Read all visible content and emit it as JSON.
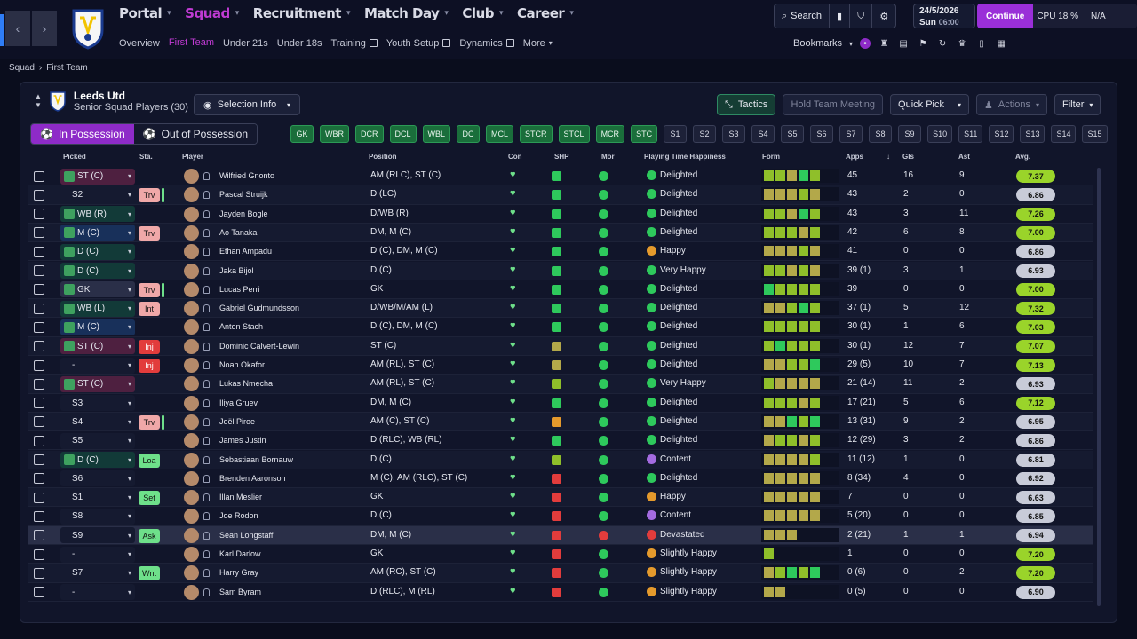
{
  "nav": {
    "main": [
      {
        "label": "Portal",
        "active": false
      },
      {
        "label": "Squad",
        "active": true
      },
      {
        "label": "Recruitment",
        "active": false
      },
      {
        "label": "Match Day",
        "active": false
      },
      {
        "label": "Club",
        "active": false
      },
      {
        "label": "Career",
        "active": false
      }
    ],
    "sub": [
      {
        "label": "Overview",
        "active": false,
        "ext": false
      },
      {
        "label": "First Team",
        "active": true,
        "ext": false
      },
      {
        "label": "Under 21s",
        "active": false,
        "ext": false
      },
      {
        "label": "Under 18s",
        "active": false,
        "ext": false
      },
      {
        "label": "Training",
        "active": false,
        "ext": true
      },
      {
        "label": "Youth Setup",
        "active": false,
        "ext": true
      },
      {
        "label": "Dynamics",
        "active": false,
        "ext": true
      },
      {
        "label": "More",
        "active": false,
        "ext": false
      }
    ]
  },
  "top": {
    "search": "Search",
    "date": "24/5/2026",
    "day": "Sun",
    "time": "06:00",
    "continue": "Continue",
    "cpu_label": "CPU",
    "cpu": "18 %",
    "gpu": "N/A",
    "bookmarks": "Bookmarks",
    "na": "N/A"
  },
  "breadcrumb": {
    "a": "Squad",
    "b": "First Team"
  },
  "team": {
    "name": "Leeds Utd",
    "sub": "Senior Squad Players (30)"
  },
  "toolbar": {
    "selection": "Selection Info",
    "tactics": "Tactics",
    "meeting": "Hold Team Meeting",
    "quick": "Quick Pick",
    "actions": "Actions",
    "filter": "Filter"
  },
  "possession": {
    "in": "In Possession",
    "out": "Out of Possession"
  },
  "positions": [
    {
      "l": "GK",
      "g": true
    },
    {
      "l": "WBR",
      "g": true
    },
    {
      "l": "DCR",
      "g": true
    },
    {
      "l": "DCL",
      "g": true
    },
    {
      "l": "WBL",
      "g": true
    },
    {
      "l": "DC",
      "g": true
    },
    {
      "l": "MCL",
      "g": true
    },
    {
      "l": "STCR",
      "g": true
    },
    {
      "l": "STCL",
      "g": true
    },
    {
      "l": "MCR",
      "g": true
    },
    {
      "l": "STC",
      "g": true
    },
    {
      "l": "S1",
      "g": false
    },
    {
      "l": "S2",
      "g": false
    },
    {
      "l": "S3",
      "g": false
    },
    {
      "l": "S4",
      "g": false
    },
    {
      "l": "S5",
      "g": false
    },
    {
      "l": "S6",
      "g": false
    },
    {
      "l": "S7",
      "g": false
    },
    {
      "l": "S8",
      "g": false
    },
    {
      "l": "S9",
      "g": false
    },
    {
      "l": "S10",
      "g": false
    },
    {
      "l": "S11",
      "g": false
    },
    {
      "l": "S12",
      "g": false
    },
    {
      "l": "S13",
      "g": false
    },
    {
      "l": "S14",
      "g": false
    },
    {
      "l": "S15",
      "g": false
    }
  ],
  "headers": {
    "picked": "Picked",
    "sta": "Sta.",
    "player": "Player",
    "position": "Position",
    "con": "Con",
    "shp": "SHP",
    "mor": "Mor",
    "happy": "Playing Time Happiness",
    "form": "Form",
    "apps": "Apps",
    "gls": "Gls",
    "ast": "Ast",
    "avg": "Avg."
  },
  "colors": {
    "green": "#2ec95c",
    "lime": "#8fbf2a",
    "olive": "#b3a84a",
    "orange": "#e59a2c",
    "red": "#e23c3c",
    "purple": "#a46be0"
  },
  "players": [
    {
      "pick": "ST (C)",
      "pk": "m",
      "sta": "",
      "name": "Wilfried Gnonto",
      "pos": "AM (RLC), ST (C)",
      "shp": "g",
      "mor": "g",
      "happy": "Delighted",
      "hc": "g",
      "form": [
        "l",
        "l",
        "o",
        "g",
        "l"
      ],
      "apps": "45",
      "gls": "16",
      "ast": "9",
      "avg": "7.37",
      "ac": "#9ad42a"
    },
    {
      "pick": "S2",
      "pk": "n",
      "sta": "Trv",
      "st": "trv",
      "tail": true,
      "name": "Pascal Struijk",
      "pos": "D (LC)",
      "shp": "g",
      "mor": "g",
      "happy": "Delighted",
      "hc": "g",
      "form": [
        "o",
        "o",
        "o",
        "l",
        "o"
      ],
      "apps": "43",
      "gls": "2",
      "ast": "0",
      "avg": "6.86",
      "ac": "#c8cbd8"
    },
    {
      "pick": "WB (R)",
      "pk": "g",
      "sta": "",
      "name": "Jayden Bogle",
      "pos": "D/WB (R)",
      "shp": "g",
      "mor": "g",
      "happy": "Delighted",
      "hc": "g",
      "form": [
        "l",
        "l",
        "o",
        "g",
        "l"
      ],
      "apps": "43",
      "gls": "3",
      "ast": "11",
      "avg": "7.26",
      "ac": "#9ad42a"
    },
    {
      "pick": "M (C)",
      "pk": "b",
      "sta": "Trv",
      "st": "trv",
      "name": "Ao Tanaka",
      "pos": "DM, M (C)",
      "shp": "g",
      "mor": "g",
      "happy": "Delighted",
      "hc": "g",
      "form": [
        "l",
        "l",
        "l",
        "o",
        "l"
      ],
      "apps": "42",
      "gls": "6",
      "ast": "8",
      "avg": "7.00",
      "ac": "#9ad42a"
    },
    {
      "pick": "D (C)",
      "pk": "g",
      "sta": "",
      "name": "Ethan Ampadu",
      "pos": "D (C), DM, M (C)",
      "shp": "g",
      "mor": "g",
      "happy": "Happy",
      "hc": "y",
      "form": [
        "o",
        "o",
        "o",
        "l",
        "o"
      ],
      "apps": "41",
      "gls": "0",
      "ast": "0",
      "avg": "6.86",
      "ac": "#c8cbd8"
    },
    {
      "pick": "D (C)",
      "pk": "g",
      "sta": "",
      "name": "Jaka Bijol",
      "pos": "D (C)",
      "shp": "g",
      "mor": "g",
      "happy": "Very Happy",
      "hc": "g",
      "form": [
        "l",
        "l",
        "o",
        "l",
        "o"
      ],
      "apps": "39 (1)",
      "gls": "3",
      "ast": "1",
      "avg": "6.93",
      "ac": "#c8cbd8"
    },
    {
      "pick": "GK",
      "pk": "gk",
      "sta": "Trv",
      "st": "trv",
      "tail": true,
      "name": "Lucas Perri",
      "pos": "GK",
      "shp": "g",
      "mor": "g",
      "happy": "Delighted",
      "hc": "g",
      "form": [
        "g",
        "l",
        "l",
        "l",
        "l"
      ],
      "apps": "39",
      "gls": "0",
      "ast": "0",
      "avg": "7.00",
      "ac": "#9ad42a"
    },
    {
      "pick": "WB (L)",
      "pk": "g",
      "sta": "Int",
      "st": "int",
      "name": "Gabriel Gudmundsson",
      "pos": "D/WB/M/AM (L)",
      "shp": "g",
      "mor": "g",
      "happy": "Delighted",
      "hc": "g",
      "form": [
        "o",
        "o",
        "l",
        "g",
        "l"
      ],
      "apps": "37 (1)",
      "gls": "5",
      "ast": "12",
      "avg": "7.32",
      "ac": "#9ad42a"
    },
    {
      "pick": "M (C)",
      "pk": "b",
      "sta": "",
      "name": "Anton Stach",
      "pos": "D (C), DM, M (C)",
      "shp": "g",
      "mor": "g",
      "happy": "Delighted",
      "hc": "g",
      "form": [
        "l",
        "l",
        "l",
        "l",
        "l"
      ],
      "apps": "30 (1)",
      "gls": "1",
      "ast": "6",
      "avg": "7.03",
      "ac": "#9ad42a"
    },
    {
      "pick": "ST (C)",
      "pk": "m",
      "sta": "Inj",
      "st": "inj",
      "name": "Dominic Calvert-Lewin",
      "pos": "ST (C)",
      "shp": "o",
      "mor": "g",
      "happy": "Delighted",
      "hc": "g",
      "form": [
        "l",
        "g",
        "l",
        "l",
        "l"
      ],
      "apps": "30 (1)",
      "gls": "12",
      "ast": "7",
      "avg": "7.07",
      "ac": "#9ad42a"
    },
    {
      "pick": "-",
      "pk": "n",
      "sta": "Inj",
      "st": "inj",
      "name": "Noah Okafor",
      "pos": "AM (RL), ST (C)",
      "shp": "o",
      "mor": "g",
      "happy": "Delighted",
      "hc": "g",
      "form": [
        "o",
        "o",
        "l",
        "l",
        "g"
      ],
      "apps": "29 (5)",
      "gls": "10",
      "ast": "7",
      "avg": "7.13",
      "ac": "#9ad42a"
    },
    {
      "pick": "ST (C)",
      "pk": "m",
      "sta": "",
      "name": "Lukas Nmecha",
      "pos": "AM (RL), ST (C)",
      "shp": "l",
      "mor": "g",
      "happy": "Very Happy",
      "hc": "g",
      "form": [
        "l",
        "o",
        "o",
        "o",
        "o"
      ],
      "apps": "21 (14)",
      "gls": "11",
      "ast": "2",
      "avg": "6.93",
      "ac": "#c8cbd8"
    },
    {
      "pick": "S3",
      "pk": "n",
      "sta": "",
      "name": "Iliya Gruev",
      "pos": "DM, M (C)",
      "shp": "g",
      "mor": "g",
      "happy": "Delighted",
      "hc": "g",
      "form": [
        "l",
        "l",
        "l",
        "o",
        "l"
      ],
      "apps": "17 (21)",
      "gls": "5",
      "ast": "6",
      "avg": "7.12",
      "ac": "#9ad42a"
    },
    {
      "pick": "S4",
      "pk": "n",
      "sta": "Trv",
      "st": "trv",
      "tail": true,
      "name": "Joël Piroe",
      "pos": "AM (C), ST (C)",
      "shp": "y",
      "mor": "g",
      "happy": "Delighted",
      "hc": "g",
      "form": [
        "o",
        "o",
        "g",
        "l",
        "g"
      ],
      "apps": "13 (31)",
      "gls": "9",
      "ast": "2",
      "avg": "6.95",
      "ac": "#c8cbd8"
    },
    {
      "pick": "S5",
      "pk": "n",
      "sta": "",
      "name": "James Justin",
      "pos": "D (RLC), WB (RL)",
      "shp": "g",
      "mor": "g",
      "happy": "Delighted",
      "hc": "g",
      "form": [
        "o",
        "l",
        "l",
        "o",
        "l"
      ],
      "apps": "12 (29)",
      "gls": "3",
      "ast": "2",
      "avg": "6.86",
      "ac": "#c8cbd8"
    },
    {
      "pick": "D (C)",
      "pk": "g",
      "sta": "Loa",
      "st": "loa",
      "name": "Sebastiaan Bornauw",
      "pos": "D (C)",
      "shp": "l",
      "mor": "g",
      "happy": "Content",
      "hc": "p",
      "form": [
        "o",
        "o",
        "o",
        "o",
        "l"
      ],
      "apps": "11 (12)",
      "gls": "1",
      "ast": "0",
      "avg": "6.81",
      "ac": "#c8cbd8"
    },
    {
      "pick": "S6",
      "pk": "n",
      "sta": "",
      "name": "Brenden Aaronson",
      "pos": "M (C), AM (RLC), ST (C)",
      "shp": "r",
      "mor": "g",
      "happy": "Delighted",
      "hc": "g",
      "form": [
        "o",
        "o",
        "o",
        "o",
        "o"
      ],
      "apps": "8 (34)",
      "gls": "4",
      "ast": "0",
      "avg": "6.92",
      "ac": "#c8cbd8"
    },
    {
      "pick": "S1",
      "pk": "n",
      "sta": "Set",
      "st": "set",
      "name": "Illan Meslier",
      "pos": "GK",
      "shp": "r",
      "mor": "g",
      "happy": "Happy",
      "hc": "y",
      "form": [
        "o",
        "o",
        "o",
        "o",
        "o"
      ],
      "apps": "7",
      "gls": "0",
      "ast": "0",
      "avg": "6.63",
      "ac": "#c8cbd8"
    },
    {
      "pick": "S8",
      "pk": "n",
      "sta": "",
      "name": "Joe Rodon",
      "pos": "D (C)",
      "shp": "r",
      "mor": "g",
      "happy": "Content",
      "hc": "p",
      "form": [
        "o",
        "o",
        "o",
        "o",
        "o"
      ],
      "apps": "5 (20)",
      "gls": "0",
      "ast": "0",
      "avg": "6.85",
      "ac": "#c8cbd8"
    },
    {
      "pick": "S9",
      "pk": "n",
      "sta": "Ask",
      "st": "ask",
      "hl": true,
      "name": "Sean Longstaff",
      "pos": "DM, M (C)",
      "shp": "r",
      "mor": "r",
      "happy": "Devastated",
      "hc": "r",
      "form": [
        "o",
        "o",
        "o"
      ],
      "apps": "2 (21)",
      "gls": "1",
      "ast": "1",
      "avg": "6.94",
      "ac": "#c8cbd8"
    },
    {
      "pick": "-",
      "pk": "n",
      "sta": "",
      "name": "Karl Darlow",
      "pos": "GK",
      "shp": "r",
      "mor": "g",
      "happy": "Slightly Happy",
      "hc": "y",
      "form": [
        "l"
      ],
      "apps": "1",
      "gls": "0",
      "ast": "0",
      "avg": "7.20",
      "ac": "#9ad42a"
    },
    {
      "pick": "S7",
      "pk": "n",
      "sta": "Wnt",
      "st": "wnt",
      "name": "Harry Gray",
      "pos": "AM (RC), ST (C)",
      "shp": "r",
      "mor": "g",
      "happy": "Slightly Happy",
      "hc": "y",
      "form": [
        "o",
        "l",
        "g",
        "l",
        "g"
      ],
      "apps": "0 (6)",
      "gls": "0",
      "ast": "2",
      "avg": "7.20",
      "ac": "#9ad42a"
    },
    {
      "pick": "-",
      "pk": "n",
      "sta": "",
      "name": "Sam Byram",
      "pos": "D (RLC), M (RL)",
      "shp": "r",
      "mor": "g",
      "happy": "Slightly Happy",
      "hc": "y",
      "form": [
        "o",
        "o"
      ],
      "apps": "0 (5)",
      "gls": "0",
      "ast": "0",
      "avg": "6.90",
      "ac": "#c8cbd8"
    }
  ]
}
